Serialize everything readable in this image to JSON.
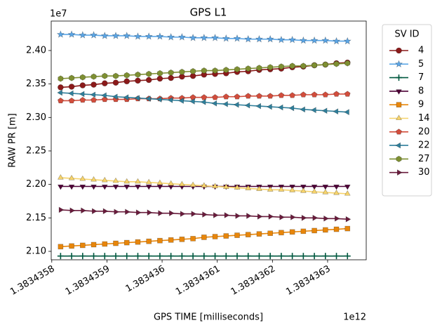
{
  "chart_data": {
    "type": "line",
    "title": "GPS L1",
    "x_label": "GPS TIME [milliseconds]",
    "y_label": "RAW PR [m]",
    "x_offset_label": "1e12",
    "y_offset_label": "1e7",
    "legend_title": "SV ID",
    "legend_position": "outside-right",
    "xlim": [
      1.383435799,
      1.38343637
    ],
    "ylim": [
      2.0874,
      2.444
    ],
    "xticks": [
      1.3834358,
      1.3834359,
      1.383436,
      1.3834361,
      1.3834362,
      1.3834363
    ],
    "yticks": [
      {
        "value": 2.1,
        "label": "2.10"
      },
      2.15,
      {
        "value": 2.2,
        "label": "2.20"
      },
      2.25,
      {
        "value": 2.3,
        "label": "2.30"
      },
      2.35,
      {
        "value": 2.4,
        "label": "2.40"
      }
    ],
    "x": [
      1.383435816,
      1.383435836,
      1.383435856,
      1.383435876,
      1.383435896,
      1.383435916,
      1.383435936,
      1.383435956,
      1.383435976,
      1.383435996,
      1.383436016,
      1.383436036,
      1.383436056,
      1.383436076,
      1.383436096,
      1.383436116,
      1.383436136,
      1.383436156,
      1.383436176,
      1.383436196,
      1.383436216,
      1.383436236,
      1.383436256,
      1.383436276,
      1.383436296,
      1.383436316,
      1.383436336
    ],
    "series": [
      {
        "name": "4",
        "color": "#8b1a1a",
        "marker": "o",
        "values": [
          2.345,
          2.346,
          2.348,
          2.349,
          2.351,
          2.352,
          2.354,
          2.355,
          2.356,
          2.358,
          2.359,
          2.361,
          2.362,
          2.364,
          2.365,
          2.366,
          2.368,
          2.369,
          2.371,
          2.372,
          2.373,
          2.375,
          2.376,
          2.378,
          2.379,
          2.381,
          2.382
        ]
      },
      {
        "name": "5",
        "color": "#5aa5e6",
        "marker": "*",
        "values": [
          2.424,
          2.424,
          2.423,
          2.423,
          2.422,
          2.422,
          2.422,
          2.421,
          2.421,
          2.421,
          2.42,
          2.42,
          2.419,
          2.419,
          2.419,
          2.418,
          2.418,
          2.417,
          2.417,
          2.417,
          2.416,
          2.416,
          2.415,
          2.415,
          2.415,
          2.414,
          2.414
        ]
      },
      {
        "name": "7",
        "color": "#00583f",
        "marker": "+",
        "values": [
          2.093,
          2.093,
          2.093,
          2.093,
          2.093,
          2.093,
          2.093,
          2.093,
          2.093,
          2.093,
          2.093,
          2.093,
          2.093,
          2.093,
          2.093,
          2.093,
          2.093,
          2.093,
          2.093,
          2.093,
          2.093,
          2.093,
          2.093,
          2.093,
          2.093,
          2.093,
          2.093
        ]
      },
      {
        "name": "8",
        "color": "#4d0036",
        "marker": "v",
        "values": [
          2.197,
          2.197,
          2.197,
          2.197,
          2.197,
          2.197,
          2.197,
          2.197,
          2.197,
          2.197,
          2.197,
          2.197,
          2.197,
          2.197,
          2.197,
          2.197,
          2.197,
          2.197,
          2.197,
          2.197,
          2.197,
          2.197,
          2.197,
          2.197,
          2.197,
          2.197,
          2.197
        ]
      },
      {
        "name": "9",
        "color": "#e8860a",
        "marker": "s",
        "values": [
          2.107,
          2.108,
          2.109,
          2.11,
          2.111,
          2.112,
          2.113,
          2.114,
          2.115,
          2.116,
          2.117,
          2.118,
          2.119,
          2.121,
          2.122,
          2.123,
          2.124,
          2.125,
          2.126,
          2.127,
          2.128,
          2.129,
          2.13,
          2.131,
          2.132,
          2.133,
          2.134
        ]
      },
      {
        "name": "14",
        "color": "#f6d36b",
        "marker": "^",
        "values": [
          2.21,
          2.209,
          2.208,
          2.207,
          2.206,
          2.205,
          2.204,
          2.204,
          2.203,
          2.202,
          2.201,
          2.2,
          2.199,
          2.198,
          2.197,
          2.196,
          2.195,
          2.194,
          2.193,
          2.192,
          2.192,
          2.191,
          2.19,
          2.189,
          2.188,
          2.187,
          2.186
        ]
      },
      {
        "name": "20",
        "color": "#d24d3c",
        "marker": "p",
        "values": [
          2.325,
          2.325,
          2.326,
          2.326,
          2.327,
          2.327,
          2.327,
          2.328,
          2.328,
          2.328,
          2.329,
          2.329,
          2.33,
          2.33,
          2.33,
          2.331,
          2.331,
          2.332,
          2.332,
          2.332,
          2.333,
          2.333,
          2.334,
          2.334,
          2.334,
          2.335,
          2.335
        ]
      },
      {
        "name": "22",
        "color": "#2f7f9b",
        "marker": "<",
        "values": [
          2.337,
          2.336,
          2.335,
          2.334,
          2.333,
          2.331,
          2.33,
          2.329,
          2.328,
          2.327,
          2.326,
          2.325,
          2.324,
          2.323,
          2.321,
          2.32,
          2.319,
          2.318,
          2.317,
          2.316,
          2.315,
          2.314,
          2.312,
          2.311,
          2.31,
          2.309,
          2.308
        ]
      },
      {
        "name": "27",
        "color": "#7e8f32",
        "marker": "h",
        "values": [
          2.358,
          2.359,
          2.36,
          2.361,
          2.362,
          2.362,
          2.363,
          2.364,
          2.365,
          2.366,
          2.367,
          2.368,
          2.369,
          2.37,
          2.37,
          2.371,
          2.372,
          2.373,
          2.374,
          2.375,
          2.376,
          2.377,
          2.377,
          2.378,
          2.379,
          2.38,
          2.381
        ]
      },
      {
        "name": "30",
        "color": "#6a1b3c",
        "marker": ">",
        "values": [
          2.162,
          2.161,
          2.161,
          2.16,
          2.16,
          2.159,
          2.159,
          2.158,
          2.158,
          2.157,
          2.157,
          2.156,
          2.156,
          2.155,
          2.154,
          2.154,
          2.153,
          2.153,
          2.152,
          2.152,
          2.151,
          2.151,
          2.15,
          2.15,
          2.149,
          2.149,
          2.148
        ]
      }
    ]
  }
}
